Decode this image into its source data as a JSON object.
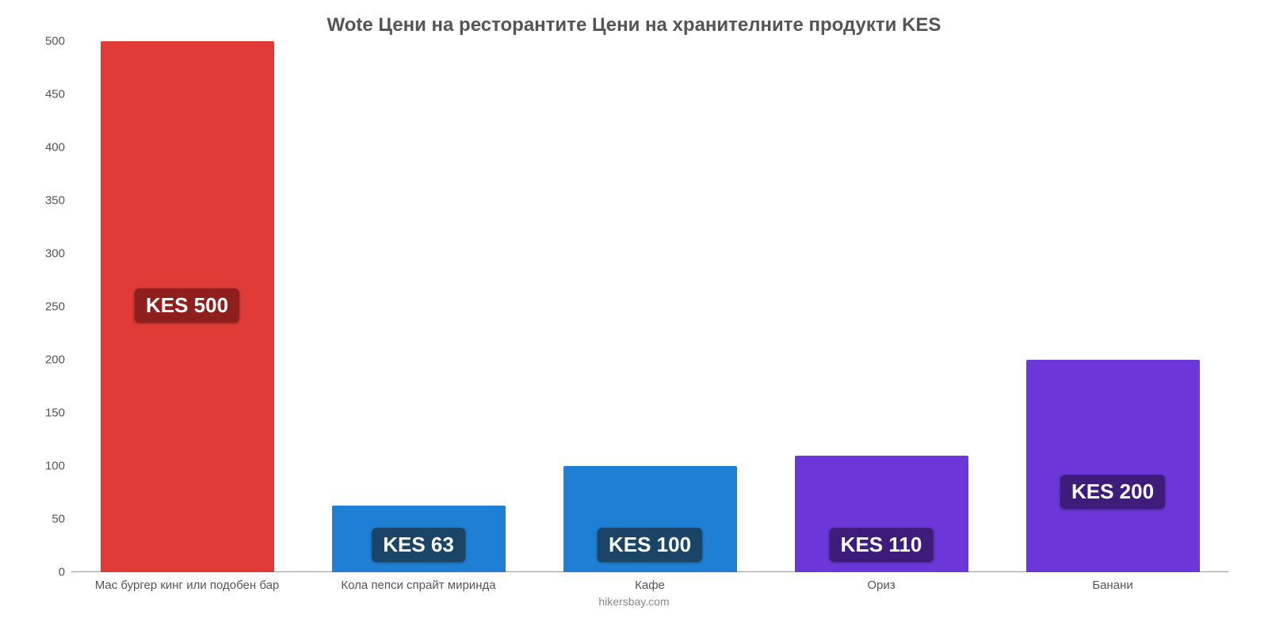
{
  "chart": {
    "type": "bar",
    "title": "Wote Цени на ресторантите Цени на хранителните продукти KES",
    "title_fontsize": 24,
    "title_color": "#555555",
    "background_color": "#ffffff",
    "y": {
      "min": 0,
      "max": 500,
      "step": 50,
      "ticks": [
        0,
        50,
        100,
        150,
        200,
        250,
        300,
        350,
        400,
        450,
        500
      ],
      "tick_color": "#555555",
      "tick_fontsize": 15
    },
    "bar_width_pct": 75,
    "badge_fontsize": 26,
    "badge_text_color": "#ffffff",
    "x_label_fontsize": 15,
    "x_label_color": "#555555",
    "bars": [
      {
        "label": "Мас бургер кинг или подобен бар",
        "value": 500,
        "value_text": "KES 500",
        "color": "#e03b36",
        "badge_bg": "#8e1f1c",
        "badge_offset_pct": 47
      },
      {
        "label": "Кола пепси спрайт миринда",
        "value": 63,
        "value_text": "KES 63",
        "color": "#1f7fd4",
        "badge_bg": "#1a4566",
        "badge_offset_pct": 2
      },
      {
        "label": "Кафе",
        "value": 100,
        "value_text": "KES 100",
        "color": "#1f7fd4",
        "badge_bg": "#1a4566",
        "badge_offset_pct": 2
      },
      {
        "label": "Ориз",
        "value": 110,
        "value_text": "KES 110",
        "color": "#6c36d9",
        "badge_bg": "#3e1d7a",
        "badge_offset_pct": 2
      },
      {
        "label": "Банани",
        "value": 200,
        "value_text": "KES 200",
        "color": "#6c36d9",
        "badge_bg": "#3e1d7a",
        "badge_offset_pct": 12
      }
    ],
    "footer": "hikersbay.com",
    "footer_color": "#888888",
    "footer_fontsize": 14
  }
}
